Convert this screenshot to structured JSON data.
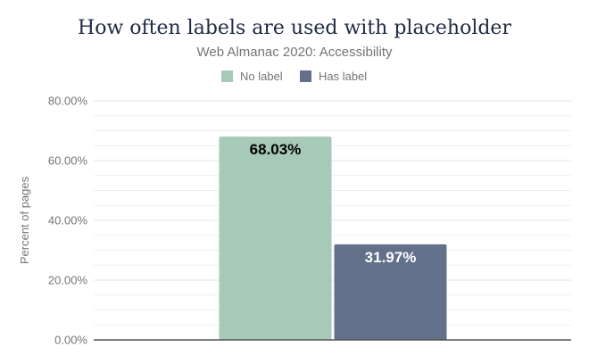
{
  "chart_data": {
    "type": "bar",
    "title": "How often labels are used with placeholder",
    "subtitle": "Web Almanac 2020: Accessibility",
    "xlabel": "",
    "ylabel": "Percent of pages",
    "ylim": [
      0,
      80
    ],
    "yticks": [
      0,
      20,
      40,
      60,
      80
    ],
    "ytick_labels": [
      "0.00%",
      "20.00%",
      "40.00%",
      "60.00%",
      "80.00%"
    ],
    "minor_grid_step": 5,
    "legend_position": "top-center",
    "series": [
      {
        "name": "No label",
        "values": [
          68.03
        ],
        "label": "68.03%",
        "color": "#a6c9b8",
        "label_color": "#000000"
      },
      {
        "name": "Has label",
        "values": [
          31.97
        ],
        "label": "31.97%",
        "color": "#627089",
        "label_color": "#ffffff"
      }
    ]
  }
}
